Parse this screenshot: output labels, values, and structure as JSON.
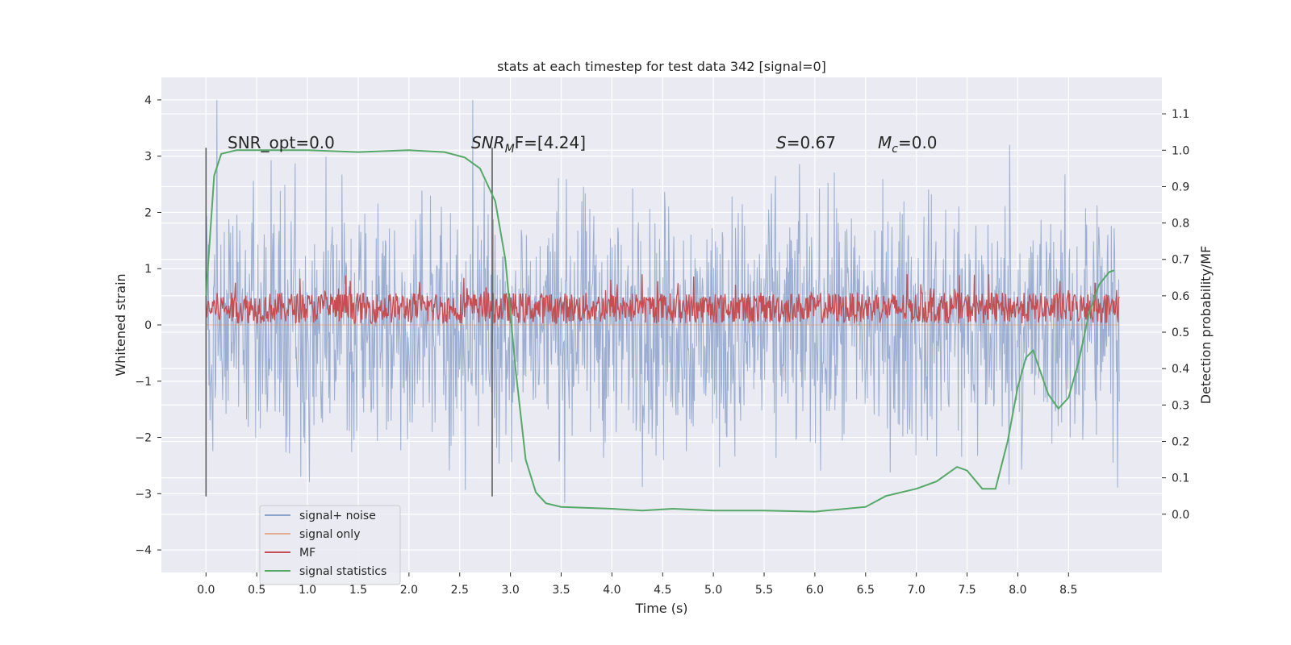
{
  "chart_data": {
    "type": "line",
    "title": "stats at each timestep for test data 342 [signal=0]",
    "xlabel": "Time (s)",
    "ylabel": "Whitened strain",
    "y2label": "Detection probability/MF",
    "xlim": [
      -0.44,
      9.42
    ],
    "ylim": [
      -4.4,
      4.4
    ],
    "y2lim": [
      -0.16,
      1.2
    ],
    "x_ticks": [
      "0.0",
      "0.5",
      "1.0",
      "1.5",
      "2.0",
      "2.5",
      "3.0",
      "3.5",
      "4.0",
      "4.5",
      "5.0",
      "5.5",
      "6.0",
      "6.5",
      "7.0",
      "7.5",
      "8.0",
      "8.5"
    ],
    "x_tick_values": [
      0,
      0.5,
      1,
      1.5,
      2,
      2.5,
      3,
      3.5,
      4,
      4.5,
      5,
      5.5,
      6,
      6.5,
      7,
      7.5,
      8,
      8.5
    ],
    "y_ticks": [
      "−4",
      "−3",
      "−2",
      "−1",
      "0",
      "1",
      "2",
      "3",
      "4"
    ],
    "y_tick_values": [
      -4,
      -3,
      -2,
      -1,
      0,
      1,
      2,
      3,
      4
    ],
    "y2_ticks": [
      "0.0",
      "0.1",
      "0.2",
      "0.3",
      "0.4",
      "0.5",
      "0.6",
      "0.7",
      "0.8",
      "0.9",
      "1.0",
      "1.1"
    ],
    "y2_tick_values": [
      0,
      0.1,
      0.2,
      0.3,
      0.4,
      0.5,
      0.6,
      0.7,
      0.8,
      0.9,
      1.0,
      1.1
    ],
    "grid": true,
    "legend_position": "bottom-left",
    "series": [
      {
        "name": "signal+ noise",
        "axis": "left",
        "color": "#4c72b0",
        "opacity": 0.5,
        "x_range": [
          0,
          9.0
        ],
        "y_envelope": [
          -3.6,
          4.0
        ],
        "description_values": {
          "typical_min": -2.5,
          "typical_max": 2.8
        }
      },
      {
        "name": "signal only",
        "axis": "left",
        "color": "#dd8452",
        "values": [
          0,
          0
        ]
      },
      {
        "name": "MF",
        "axis": "left",
        "color": "#c44e52",
        "x_range": [
          0,
          9.0
        ],
        "y_band": [
          0.0,
          0.9
        ]
      },
      {
        "name": "signal statistics",
        "axis": "right",
        "color": "#55a868",
        "points": [
          [
            0.0,
            0.6
          ],
          [
            0.08,
            0.93
          ],
          [
            0.15,
            0.99
          ],
          [
            0.3,
            1.0
          ],
          [
            1.0,
            1.0
          ],
          [
            1.5,
            0.995
          ],
          [
            2.0,
            1.0
          ],
          [
            2.35,
            0.995
          ],
          [
            2.55,
            0.98
          ],
          [
            2.7,
            0.95
          ],
          [
            2.85,
            0.86
          ],
          [
            2.95,
            0.7
          ],
          [
            3.05,
            0.4
          ],
          [
            3.15,
            0.15
          ],
          [
            3.25,
            0.06
          ],
          [
            3.35,
            0.03
          ],
          [
            3.5,
            0.02
          ],
          [
            4.0,
            0.015
          ],
          [
            4.3,
            0.01
          ],
          [
            4.6,
            0.015
          ],
          [
            5.0,
            0.01
          ],
          [
            5.5,
            0.01
          ],
          [
            6.0,
            0.007
          ],
          [
            6.5,
            0.02
          ],
          [
            6.7,
            0.05
          ],
          [
            7.0,
            0.07
          ],
          [
            7.2,
            0.09
          ],
          [
            7.4,
            0.13
          ],
          [
            7.5,
            0.12
          ],
          [
            7.65,
            0.07
          ],
          [
            7.78,
            0.07
          ],
          [
            7.9,
            0.2
          ],
          [
            8.0,
            0.35
          ],
          [
            8.08,
            0.43
          ],
          [
            8.15,
            0.45
          ],
          [
            8.3,
            0.33
          ],
          [
            8.4,
            0.29
          ],
          [
            8.5,
            0.32
          ],
          [
            8.6,
            0.42
          ],
          [
            8.7,
            0.55
          ],
          [
            8.8,
            0.63
          ],
          [
            8.9,
            0.665
          ],
          [
            8.95,
            0.67
          ]
        ]
      }
    ],
    "vlines": [
      {
        "x": 0.0,
        "y_from": -3.05,
        "y_to": 3.15,
        "color": "#555555"
      },
      {
        "x": 2.82,
        "y_from": -3.05,
        "y_to": 3.15,
        "color": "#555555"
      }
    ],
    "annotations": [
      {
        "text": "SNR_opt=0.0",
        "x": 0.2,
        "y": 3.1
      },
      {
        "text": "SNRMF=[4.24]",
        "x": 2.6,
        "y": 3.1
      },
      {
        "text": "S=0.67",
        "x": 5.6,
        "y": 3.1
      },
      {
        "text": "Mc=0.0",
        "x": 6.6,
        "y": 3.1
      }
    ]
  },
  "legend": {
    "items": [
      {
        "label": "signal+ noise",
        "color": "#4c72b0",
        "opacity": 0.6
      },
      {
        "label": "signal only",
        "color": "#dd8452",
        "opacity": 0.6
      },
      {
        "label": "MF",
        "color": "#c44e52",
        "opacity": 1
      },
      {
        "label": "signal statistics",
        "color": "#55a868",
        "opacity": 1
      }
    ]
  },
  "annot_text": {
    "snr_opt": "SNR_opt=0.0",
    "snr_mf_main": "SNR",
    "snr_mf_sub": "M",
    "snr_mf_rest": "F=[4.24]",
    "s_symbol": "S",
    "s_value": "=0.67",
    "mc_main": "M",
    "mc_sub": "c",
    "mc_value": "=0.0"
  }
}
